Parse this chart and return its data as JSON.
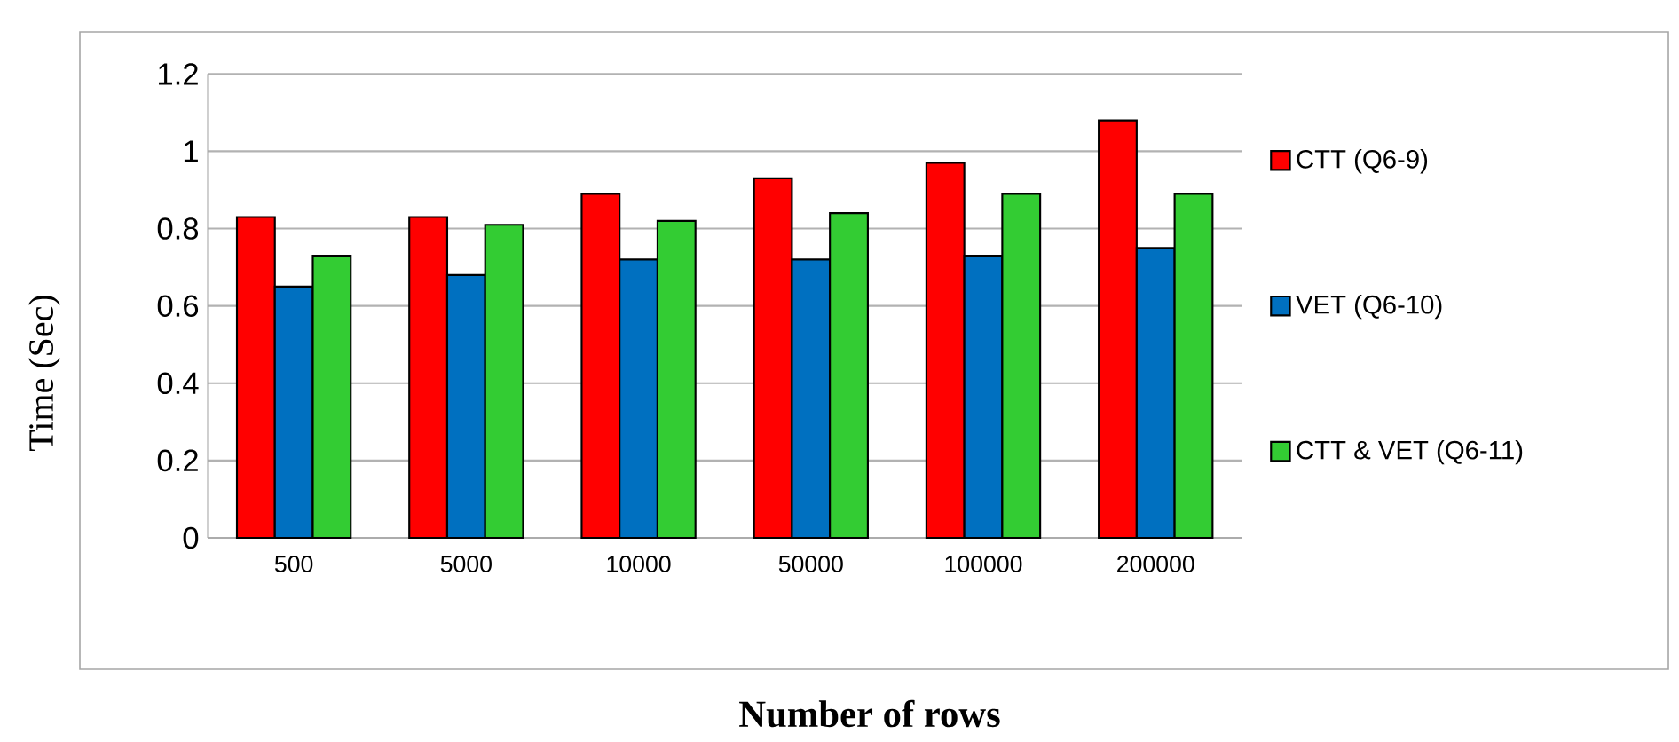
{
  "chart_data": {
    "type": "bar",
    "xlabel": "Number of rows",
    "ylabel": "Time (Sec)",
    "categories": [
      "500",
      "5000",
      "10000",
      "50000",
      "100000",
      "200000"
    ],
    "series": [
      {
        "name": "CTT (Q6-9)",
        "color": "#ff0000",
        "values": [
          0.83,
          0.83,
          0.89,
          0.93,
          0.97,
          1.08
        ]
      },
      {
        "name": "VET (Q6-10)",
        "color": "#0070c0",
        "values": [
          0.65,
          0.68,
          0.72,
          0.72,
          0.73,
          0.75
        ]
      },
      {
        "name": "CTT & VET (Q6-11)",
        "color": "#33cc33",
        "values": [
          0.73,
          0.81,
          0.82,
          0.84,
          0.89,
          0.89
        ]
      }
    ],
    "ylim": [
      0,
      1.2
    ],
    "yticks": [
      0,
      0.2,
      0.4,
      0.6,
      0.8,
      1,
      1.2
    ],
    "grid": "y",
    "legend": "right"
  }
}
